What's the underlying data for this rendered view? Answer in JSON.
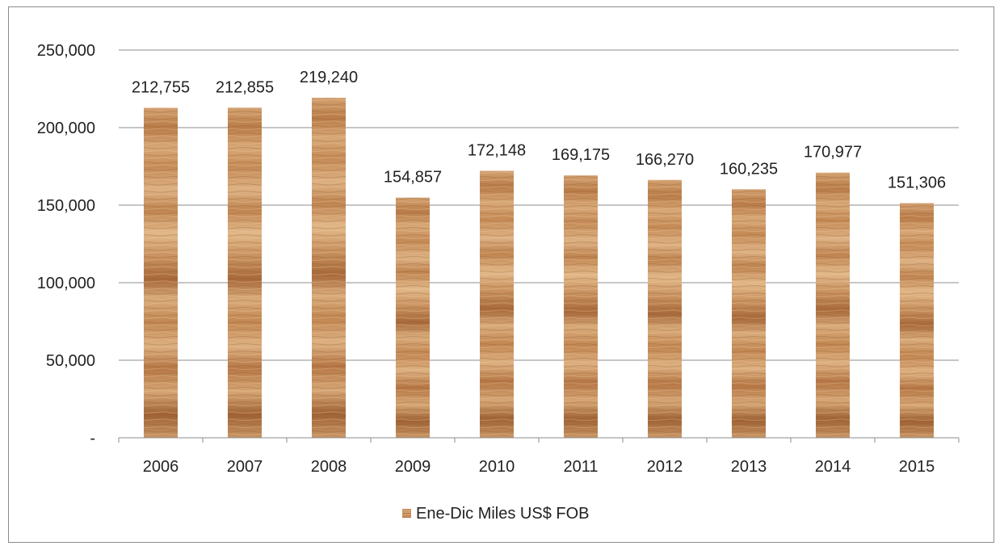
{
  "chart_data": {
    "type": "bar",
    "title": "",
    "xlabel": "",
    "ylabel": "",
    "categories": [
      "2006",
      "2007",
      "2008",
      "2009",
      "2010",
      "2011",
      "2012",
      "2013",
      "2014",
      "2015"
    ],
    "series": [
      {
        "name": "Ene-Dic Miles US$ FOB",
        "values": [
          212755,
          212855,
          219240,
          154857,
          172148,
          169175,
          166270,
          160235,
          170977,
          151306
        ],
        "data_labels": [
          "212,755",
          "212,855",
          "219,240",
          "154,857",
          "172,148",
          "169,175",
          "166,270",
          "160,235",
          "170,977",
          "151,306"
        ],
        "fill": "wood-texture",
        "color": "#c8915c"
      }
    ],
    "ylim": [
      0,
      250000
    ],
    "yticks": [
      0,
      50000,
      100000,
      150000,
      200000,
      250000
    ],
    "ytick_labels": [
      "-",
      "50,000",
      "100,000",
      "150,000",
      "200,000",
      "250,000"
    ],
    "grid": true,
    "gridline_color": "#8c8c8c",
    "legend_position": "bottom"
  }
}
